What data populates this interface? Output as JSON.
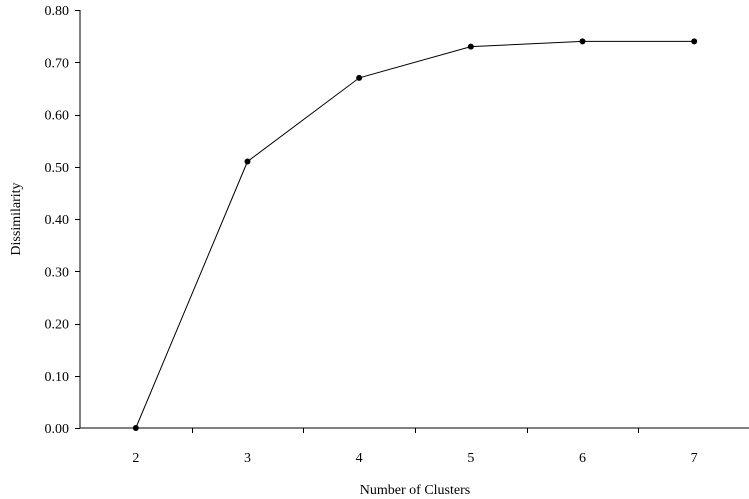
{
  "chart_data": {
    "type": "line",
    "title": "",
    "xlabel": "Number of Clusters",
    "ylabel": "Dissimilarity",
    "categories": [
      "2",
      "3",
      "4",
      "5",
      "6",
      "7"
    ],
    "series": [
      {
        "values": [
          0.0,
          0.51,
          0.67,
          0.73,
          0.74,
          0.74
        ]
      }
    ],
    "ylim": [
      0,
      0.8
    ],
    "yticks": [
      "0.00",
      "0.10",
      "0.20",
      "0.30",
      "0.40",
      "0.50",
      "0.60",
      "0.70",
      "0.80"
    ],
    "grid": false,
    "legend": "none",
    "markers": "circle",
    "line_color": "#000000"
  }
}
